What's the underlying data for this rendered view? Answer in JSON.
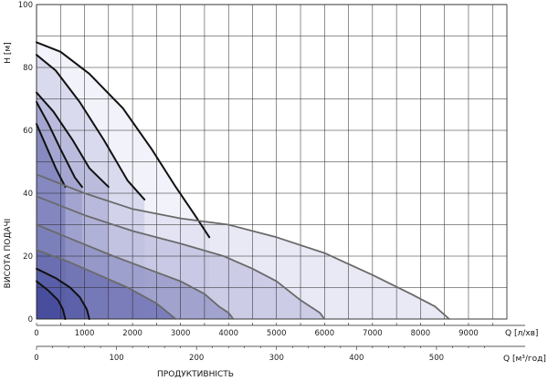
{
  "chart_data": {
    "type": "line",
    "title": "",
    "ylabel_units": "H [м]",
    "ylabel": "ВИСОТА ПОДАЧІ",
    "xlabel_flow_lpm": "Q [л/хв]",
    "xlabel_flow_m3h": "Q [м³/год]",
    "xlabel": "ПРОДУКТИВНІСТЬ",
    "x_lpm_ticks": [
      "0",
      "1000",
      "2000",
      "3000",
      "4000",
      "5000",
      "6000",
      "7000",
      "8000",
      "9000"
    ],
    "x_m3h_ticks": [
      "0",
      "100",
      "200",
      "300",
      "400",
      "500"
    ],
    "x_m3h_tick_values": [
      0,
      100,
      200,
      300,
      400,
      500
    ],
    "y_ticks": [
      "0",
      "20",
      "40",
      "60",
      "80",
      "100"
    ],
    "y_tick_values": [
      0,
      20,
      40,
      60,
      80,
      100
    ],
    "xlim": [
      0,
      9800
    ],
    "ylim": [
      0,
      100
    ],
    "grid": true,
    "colors": {
      "curve_dark": "#111111",
      "curve_gray": "#6a6a6a",
      "fill_lightest": "#e8e8f6",
      "fill_darkest": "#3a3f96"
    },
    "series": [
      {
        "x": [
          0,
          500,
          1100,
          1800,
          2400,
          2900,
          3300,
          3600
        ],
        "y": [
          88,
          85,
          78,
          67,
          54,
          42,
          33,
          26
        ]
      },
      {
        "x": [
          0,
          400,
          900,
          1400,
          1900,
          2250
        ],
        "y": [
          84,
          79,
          69,
          57,
          44,
          38
        ]
      },
      {
        "x": [
          0,
          350,
          750,
          1100,
          1500
        ],
        "y": [
          72,
          66,
          57,
          48,
          42
        ]
      },
      {
        "x": [
          0,
          250,
          500,
          800,
          950
        ],
        "y": [
          69,
          62,
          54,
          45,
          42
        ]
      },
      {
        "x": [
          0,
          200,
          400,
          600
        ],
        "y": [
          62,
          55,
          48,
          42
        ]
      },
      {
        "x": [
          0,
          1000,
          2000,
          3000,
          4000,
          5000,
          6000,
          7000,
          7800,
          8300,
          8600
        ],
        "y": [
          46,
          40,
          35,
          32,
          30,
          26,
          21,
          14,
          8,
          4,
          0
        ]
      },
      {
        "x": [
          0,
          1000,
          2000,
          3000,
          3900,
          4500,
          5000,
          5500,
          5900,
          6000
        ],
        "y": [
          39,
          33,
          28,
          24,
          20,
          16,
          12,
          6,
          2,
          0
        ]
      },
      {
        "x": [
          0,
          800,
          1600,
          2300,
          3000,
          3500,
          3800,
          4000,
          4100
        ],
        "y": [
          30,
          25,
          20,
          16,
          12,
          8,
          4,
          2,
          0
        ]
      },
      {
        "x": [
          0,
          700,
          1300,
          1900,
          2500,
          2900
        ],
        "y": [
          22,
          18,
          14,
          10,
          5,
          0
        ]
      },
      {
        "x": [
          0,
          400,
          700,
          900,
          1050,
          1100
        ],
        "y": [
          16,
          13,
          10,
          7,
          3,
          0
        ]
      },
      {
        "x": [
          0,
          250,
          450,
          550,
          600
        ],
        "y": [
          12,
          9,
          6,
          3,
          0
        ]
      }
    ]
  }
}
